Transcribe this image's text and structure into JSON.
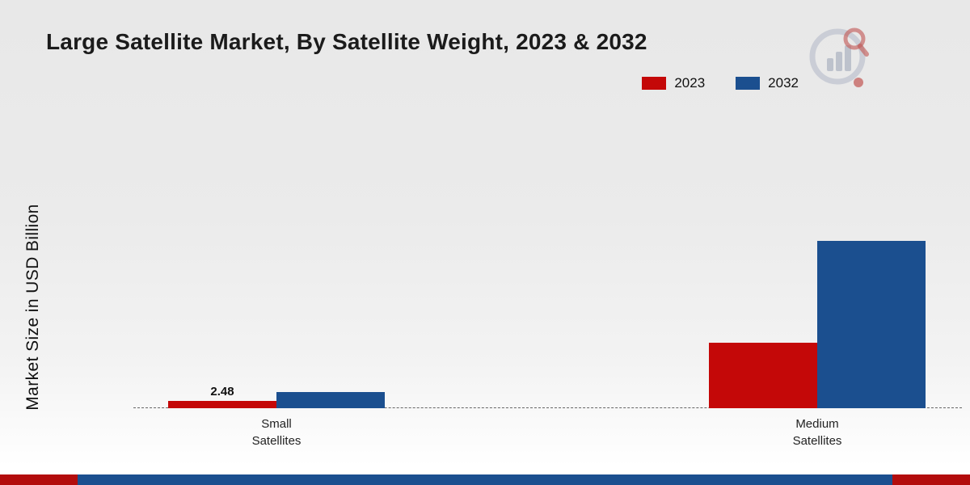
{
  "chart_data": {
    "type": "bar",
    "title": "Large Satellite Market, By Satellite Weight, 2023 & 2032",
    "ylabel": "Market Size in USD Billion",
    "categories": [
      "Small Satellites",
      "Medium Satellites"
    ],
    "series": [
      {
        "name": "2023",
        "color": "#c40808",
        "values": [
          2.48,
          22.5
        ]
      },
      {
        "name": "2032",
        "color": "#1b4f8f",
        "values": [
          5.6,
          57.5
        ]
      }
    ],
    "ylim": [
      0,
      60
    ],
    "grid": false,
    "legend_position": "top-right",
    "baseline_style": "dashed",
    "data_labels": [
      {
        "series": "2023",
        "category": "Small Satellites",
        "text": "2.48"
      }
    ]
  },
  "legend": {
    "items": [
      {
        "label": "2023",
        "color": "#c40808"
      },
      {
        "label": "2032",
        "color": "#1b4f8f"
      }
    ]
  },
  "branding": {
    "logo_name": "bar-chart-magnifier-logo"
  },
  "footer": {
    "accent_colors": {
      "red": "#b30c0c",
      "blue": "#1b4f8f"
    }
  }
}
